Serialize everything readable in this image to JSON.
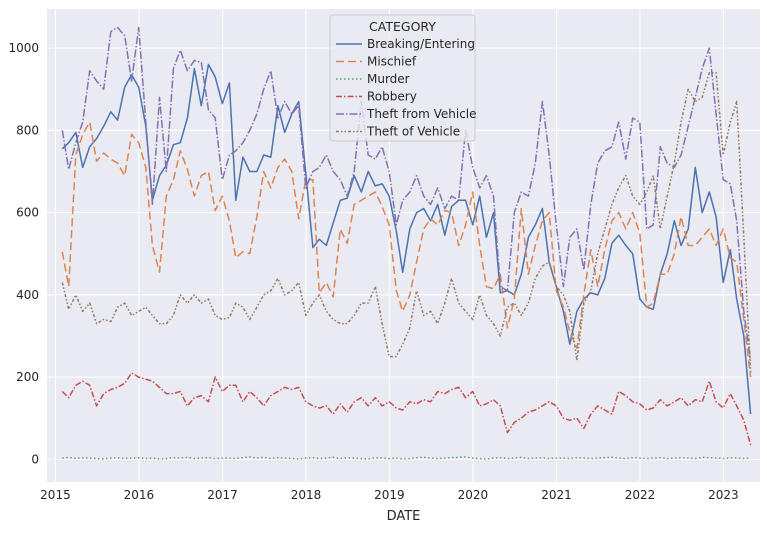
{
  "chart_data": {
    "type": "line",
    "title": "",
    "xlabel": "DATE",
    "ylabel": "",
    "xlim": [
      "2014-11-25",
      "2023-06-10"
    ],
    "ylim": [
      -55,
      1095
    ],
    "grid": true,
    "legend": {
      "title": "CATEGORY",
      "placement": "top-center"
    },
    "x_ticks": [
      "2015",
      "2016",
      "2017",
      "2018",
      "2019",
      "2020",
      "2021",
      "2022",
      "2023"
    ],
    "y_ticks": [
      0,
      200,
      400,
      600,
      800,
      1000
    ],
    "x": [
      "2015-01-31",
      "2015-02-28",
      "2015-03-31",
      "2015-04-30",
      "2015-05-31",
      "2015-06-30",
      "2015-07-31",
      "2015-08-31",
      "2015-09-30",
      "2015-10-31",
      "2015-11-30",
      "2015-12-31",
      "2016-01-31",
      "2016-02-29",
      "2016-03-31",
      "2016-04-30",
      "2016-05-31",
      "2016-06-30",
      "2016-07-31",
      "2016-08-31",
      "2016-09-30",
      "2016-10-31",
      "2016-11-30",
      "2016-12-31",
      "2017-01-31",
      "2017-02-28",
      "2017-03-31",
      "2017-04-30",
      "2017-05-31",
      "2017-06-30",
      "2017-07-31",
      "2017-08-31",
      "2017-09-30",
      "2017-10-31",
      "2017-11-30",
      "2017-12-31",
      "2018-01-31",
      "2018-02-28",
      "2018-03-31",
      "2018-04-30",
      "2018-05-31",
      "2018-06-30",
      "2018-07-31",
      "2018-08-31",
      "2018-09-30",
      "2018-10-31",
      "2018-11-30",
      "2018-12-31",
      "2019-01-31",
      "2019-02-28",
      "2019-03-31",
      "2019-04-30",
      "2019-05-31",
      "2019-06-30",
      "2019-07-31",
      "2019-08-31",
      "2019-09-30",
      "2019-10-31",
      "2019-11-30",
      "2019-12-31",
      "2020-01-31",
      "2020-02-29",
      "2020-03-31",
      "2020-04-30",
      "2020-05-31",
      "2020-06-30",
      "2020-07-31",
      "2020-08-31",
      "2020-09-30",
      "2020-10-31",
      "2020-11-30",
      "2020-12-31",
      "2021-01-31",
      "2021-02-28",
      "2021-03-31",
      "2021-04-30",
      "2021-05-31",
      "2021-06-30",
      "2021-07-31",
      "2021-08-31",
      "2021-09-30",
      "2021-10-31",
      "2021-11-30",
      "2021-12-31",
      "2022-01-31",
      "2022-02-28",
      "2022-03-31",
      "2022-04-30",
      "2022-05-31",
      "2022-06-30",
      "2022-07-31",
      "2022-08-31",
      "2022-09-30",
      "2022-10-31",
      "2022-11-30",
      "2022-12-31",
      "2023-01-31",
      "2023-02-28",
      "2023-03-31",
      "2023-04-30"
    ],
    "series": [
      {
        "name": "Breaking/Entering",
        "color": "#4c72b0",
        "dash": "solid",
        "values": [
          755,
          770,
          795,
          710,
          760,
          780,
          810,
          845,
          825,
          905,
          935,
          905,
          810,
          630,
          690,
          715,
          765,
          770,
          830,
          950,
          860,
          960,
          930,
          865,
          915,
          630,
          735,
          700,
          700,
          740,
          735,
          860,
          795,
          840,
          870,
          695,
          515,
          535,
          520,
          575,
          630,
          635,
          690,
          650,
          700,
          665,
          670,
          640,
          555,
          455,
          560,
          600,
          610,
          580,
          620,
          545,
          615,
          630,
          630,
          570,
          640,
          540,
          600,
          405,
          410,
          400,
          450,
          540,
          570,
          610,
          480,
          420,
          360,
          280,
          360,
          390,
          405,
          400,
          440,
          525,
          545,
          520,
          500,
          390,
          370,
          365,
          450,
          500,
          580,
          520,
          560,
          710,
          600,
          650,
          590,
          430,
          510,
          390,
          300,
          110
        ]
      },
      {
        "name": "Mischief",
        "color": "#dd8452",
        "dash": "8,4",
        "values": [
          505,
          420,
          740,
          790,
          820,
          725,
          745,
          730,
          720,
          690,
          790,
          770,
          710,
          520,
          455,
          640,
          680,
          750,
          705,
          640,
          690,
          700,
          605,
          640,
          580,
          490,
          505,
          500,
          590,
          700,
          660,
          710,
          730,
          700,
          585,
          680,
          680,
          405,
          430,
          395,
          560,
          525,
          620,
          630,
          640,
          650,
          615,
          570,
          410,
          360,
          400,
          480,
          560,
          585,
          570,
          605,
          600,
          520,
          570,
          650,
          520,
          420,
          415,
          450,
          320,
          390,
          610,
          450,
          520,
          580,
          600,
          410,
          370,
          310,
          270,
          400,
          510,
          420,
          510,
          580,
          600,
          560,
          600,
          550,
          370,
          380,
          450,
          450,
          500,
          590,
          520,
          520,
          540,
          560,
          520,
          560,
          490,
          480,
          340,
          200
        ]
      },
      {
        "name": "Murder",
        "color": "#55a868",
        "dash": "1.5,2.5",
        "values": [
          3,
          5,
          2,
          4,
          3,
          2,
          1,
          3,
          4,
          2,
          3,
          4,
          2,
          3,
          1,
          2,
          4,
          3,
          5,
          2,
          3,
          4,
          2,
          3,
          3,
          2,
          4,
          6,
          3,
          5,
          2,
          4,
          3,
          2,
          1,
          3,
          4,
          2,
          3,
          5,
          2,
          4,
          3,
          2,
          1,
          4,
          3,
          2,
          3,
          1,
          2,
          4,
          5,
          3,
          2,
          3,
          4,
          5,
          6,
          3,
          2,
          1,
          3,
          4,
          2,
          3,
          5,
          2,
          3,
          4,
          2,
          3,
          3,
          2,
          4,
          3,
          2,
          3,
          4,
          5,
          3,
          2,
          4,
          3,
          2,
          3,
          4,
          2,
          3,
          4,
          3,
          2,
          5,
          4,
          3,
          2,
          4,
          3,
          2,
          3
        ]
      },
      {
        "name": "Robbery",
        "color": "#c44e52",
        "dash": "6,2,1.5,2",
        "values": [
          165,
          150,
          180,
          190,
          180,
          130,
          160,
          170,
          175,
          185,
          210,
          200,
          195,
          190,
          175,
          160,
          160,
          165,
          130,
          150,
          155,
          140,
          200,
          165,
          180,
          180,
          140,
          165,
          150,
          130,
          155,
          165,
          175,
          170,
          175,
          140,
          130,
          125,
          130,
          110,
          135,
          115,
          140,
          150,
          130,
          150,
          130,
          140,
          125,
          120,
          140,
          135,
          145,
          140,
          165,
          160,
          170,
          175,
          150,
          165,
          130,
          135,
          145,
          130,
          65,
          90,
          100,
          115,
          120,
          130,
          140,
          130,
          100,
          95,
          100,
          75,
          110,
          130,
          120,
          110,
          165,
          155,
          140,
          135,
          120,
          125,
          145,
          130,
          140,
          150,
          130,
          145,
          140,
          190,
          140,
          125,
          160,
          130,
          95,
          35
        ]
      },
      {
        "name": "Theft from Vehicle",
        "color": "#8172b3",
        "dash": "8,2,1.5,2",
        "values": [
          800,
          705,
          770,
          820,
          945,
          920,
          900,
          1040,
          1050,
          1030,
          920,
          1050,
          820,
          620,
          880,
          700,
          950,
          995,
          945,
          970,
          965,
          850,
          830,
          680,
          740,
          750,
          770,
          800,
          840,
          900,
          945,
          830,
          870,
          840,
          860,
          660,
          700,
          710,
          740,
          700,
          680,
          640,
          700,
          870,
          740,
          730,
          760,
          700,
          570,
          630,
          650,
          690,
          640,
          620,
          660,
          610,
          640,
          630,
          800,
          710,
          660,
          690,
          640,
          420,
          410,
          600,
          650,
          640,
          720,
          870,
          740,
          570,
          420,
          540,
          560,
          460,
          620,
          720,
          750,
          760,
          820,
          730,
          830,
          820,
          560,
          570,
          760,
          720,
          710,
          740,
          810,
          880,
          950,
          1000,
          840,
          680,
          670,
          580,
          360,
          240
        ]
      },
      {
        "name": "Theft of Vehicle",
        "color": "#937860",
        "dash": "3,2,1.5,2,1.5,2",
        "values": [
          430,
          365,
          400,
          360,
          380,
          330,
          340,
          335,
          370,
          380,
          350,
          360,
          370,
          350,
          330,
          330,
          350,
          400,
          380,
          400,
          380,
          390,
          350,
          340,
          345,
          380,
          370,
          340,
          370,
          400,
          410,
          440,
          400,
          410,
          430,
          350,
          380,
          400,
          360,
          340,
          330,
          330,
          350,
          380,
          380,
          420,
          330,
          250,
          250,
          280,
          320,
          410,
          350,
          360,
          330,
          380,
          440,
          380,
          360,
          340,
          400,
          350,
          330,
          300,
          370,
          380,
          350,
          380,
          440,
          470,
          480,
          420,
          400,
          360,
          240,
          380,
          410,
          500,
          560,
          620,
          660,
          690,
          640,
          620,
          650,
          690,
          560,
          640,
          720,
          820,
          900,
          870,
          880,
          940,
          940,
          740,
          820,
          870,
          540,
          210
        ]
      }
    ]
  }
}
